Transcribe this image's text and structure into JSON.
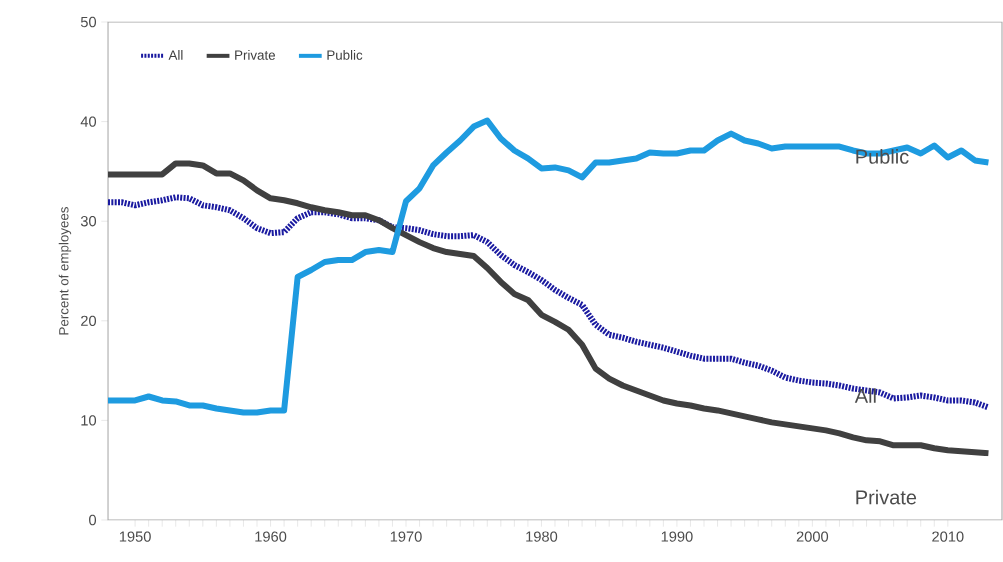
{
  "chart_data": {
    "type": "line",
    "ylabel": "Percent of employees",
    "x": [
      1948,
      1949,
      1950,
      1951,
      1952,
      1953,
      1954,
      1955,
      1956,
      1957,
      1958,
      1959,
      1960,
      1961,
      1962,
      1963,
      1964,
      1965,
      1966,
      1967,
      1968,
      1969,
      1970,
      1971,
      1972,
      1973,
      1974,
      1975,
      1976,
      1977,
      1978,
      1979,
      1980,
      1981,
      1982,
      1983,
      1984,
      1985,
      1986,
      1987,
      1988,
      1989,
      1990,
      1991,
      1992,
      1993,
      1994,
      1995,
      1996,
      1997,
      1998,
      1999,
      2000,
      2001,
      2002,
      2003,
      2004,
      2005,
      2006,
      2007,
      2008,
      2009,
      2010,
      2011,
      2012,
      2013
    ],
    "series": [
      {
        "name": "All",
        "color": "#1a1aa0",
        "line_style": "dotted",
        "values": [
          31.9,
          31.9,
          31.6,
          31.9,
          32.1,
          32.4,
          32.3,
          31.6,
          31.4,
          31.1,
          30.3,
          29.3,
          28.8,
          28.9,
          30.3,
          30.9,
          30.9,
          30.7,
          30.3,
          30.3,
          30.1,
          29.4,
          29.3,
          29.1,
          28.7,
          28.5,
          28.5,
          28.6,
          27.9,
          26.6,
          25.6,
          24.9,
          24.1,
          23.1,
          22.3,
          21.6,
          19.6,
          18.6,
          18.3,
          17.9,
          17.6,
          17.3,
          16.9,
          16.5,
          16.2,
          16.2,
          16.2,
          15.8,
          15.5,
          15.0,
          14.3,
          14.0,
          13.8,
          13.7,
          13.5,
          13.2,
          13.0,
          12.8,
          12.2,
          12.3,
          12.5,
          12.3,
          12.0,
          12.0,
          11.8,
          11.3
        ]
      },
      {
        "name": "Private",
        "color": "#404040",
        "line_style": "solid",
        "values": [
          34.7,
          34.7,
          34.7,
          34.7,
          34.7,
          35.8,
          35.8,
          35.6,
          34.8,
          34.8,
          34.1,
          33.1,
          32.3,
          32.1,
          31.8,
          31.4,
          31.1,
          30.9,
          30.6,
          30.6,
          30.1,
          29.3,
          28.6,
          27.9,
          27.3,
          26.9,
          26.7,
          26.5,
          25.3,
          23.9,
          22.7,
          22.1,
          20.6,
          19.9,
          19.1,
          17.6,
          15.2,
          14.2,
          13.5,
          13.0,
          12.5,
          12.0,
          11.7,
          11.5,
          11.2,
          11.0,
          10.7,
          10.4,
          10.1,
          9.8,
          9.6,
          9.4,
          9.2,
          9.0,
          8.7,
          8.3,
          8.0,
          7.9,
          7.5,
          7.5,
          7.5,
          7.2,
          7.0,
          6.9,
          6.8,
          6.7
        ]
      },
      {
        "name": "Public",
        "color": "#1e9be0",
        "line_style": "solid",
        "values": [
          12.0,
          12.0,
          12.0,
          12.4,
          12.0,
          11.9,
          11.5,
          11.5,
          11.2,
          11.0,
          10.8,
          10.8,
          11.0,
          11.0,
          24.4,
          25.1,
          25.9,
          26.1,
          26.1,
          26.9,
          27.1,
          26.9,
          32.0,
          33.3,
          35.6,
          36.9,
          38.1,
          39.5,
          40.1,
          38.3,
          37.1,
          36.3,
          35.3,
          35.4,
          35.1,
          34.4,
          35.9,
          35.9,
          36.1,
          36.3,
          36.9,
          36.8,
          36.8,
          37.1,
          37.1,
          38.1,
          38.8,
          38.1,
          37.8,
          37.3,
          37.5,
          37.5,
          37.5,
          37.5,
          37.5,
          37.1,
          36.8,
          36.8,
          37.1,
          37.4,
          36.8,
          37.6,
          36.4,
          37.1,
          36.1,
          35.9
        ]
      }
    ],
    "xlim": [
      1948,
      2014
    ],
    "xticks": [
      1950,
      1960,
      1970,
      1980,
      1990,
      2000,
      2010
    ],
    "ylim": [
      0,
      50
    ],
    "yticks": [
      0,
      10,
      20,
      30,
      40,
      50
    ],
    "grid": false,
    "legend": "top left",
    "marker": "none",
    "annotations": [
      "Public",
      "All",
      "Private"
    ]
  }
}
